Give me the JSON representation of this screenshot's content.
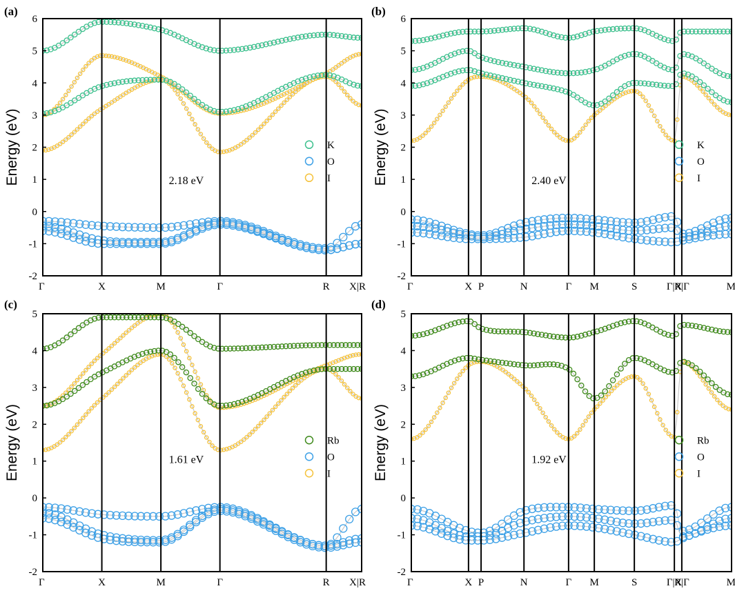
{
  "colors": {
    "K": "#3dc08e",
    "Rb": "#3f8a1c",
    "O": "#3da0e6",
    "I": "#f5c23b",
    "line": "#c8c8c8"
  },
  "chart_data": [
    {
      "panel": "(a)",
      "type": "line",
      "ylabel": "Energy (eV)",
      "ylim": [
        -2,
        6
      ],
      "yticks": [
        -2,
        -1,
        0,
        1,
        2,
        3,
        4,
        5,
        6
      ],
      "kpoints": [
        "Γ",
        "X",
        "M",
        "Γ",
        "R",
        "X|R"
      ],
      "kpos": [
        0,
        1,
        2,
        3,
        4.8,
        5.4
      ],
      "gap_label": "2.18 eV",
      "legend": [
        {
          "name": "K",
          "color": "#3dc08e"
        },
        {
          "name": "O",
          "color": "#3da0e6"
        },
        {
          "name": "I",
          "color": "#f5c23b"
        }
      ],
      "series": [
        {
          "name": "O",
          "x": [
            0,
            1,
            2,
            3,
            4.8,
            5.4
          ],
          "y": [
            -0.3,
            -0.45,
            -0.5,
            -0.3,
            -1.15,
            -0.4
          ]
        },
        {
          "name": "O",
          "x": [
            0,
            1,
            2,
            3,
            4.8,
            5.4
          ],
          "y": [
            -0.45,
            -0.9,
            -0.95,
            -0.35,
            -1.2,
            -1.0
          ]
        },
        {
          "name": "O",
          "x": [
            0,
            1,
            2,
            3,
            4.8,
            5.4
          ],
          "y": [
            -0.6,
            -1.0,
            -1.0,
            -0.4,
            -1.2,
            -1.0
          ]
        },
        {
          "name": "I",
          "x": [
            0,
            1,
            2,
            3,
            4.8,
            5.4
          ],
          "y": [
            1.9,
            3.2,
            4.1,
            1.85,
            4.2,
            3.3
          ]
        },
        {
          "name": "I",
          "x": [
            0,
            1,
            2,
            3,
            4.8,
            5.4
          ],
          "y": [
            3.0,
            4.85,
            4.2,
            3.05,
            4.3,
            4.9
          ]
        },
        {
          "name": "K",
          "x": [
            0,
            1,
            2,
            3,
            4.8,
            5.4
          ],
          "y": [
            3.05,
            3.9,
            4.1,
            3.1,
            4.25,
            3.9
          ]
        },
        {
          "name": "K",
          "x": [
            0,
            1,
            2,
            3,
            4.8,
            5.4
          ],
          "y": [
            5.0,
            5.9,
            5.65,
            5.0,
            5.5,
            5.4
          ]
        }
      ]
    },
    {
      "panel": "(b)",
      "type": "line",
      "ylabel": "Energy (eV)",
      "ylim": [
        -2,
        6
      ],
      "yticks": [
        -2,
        -1,
        0,
        1,
        2,
        3,
        4,
        5,
        6
      ],
      "kpoints": [
        "Γ",
        "X",
        "P",
        "N",
        "Γ",
        "M",
        "S",
        "Γ|X",
        "R|Γ",
        "M"
      ],
      "kpos": [
        0,
        1,
        1.22,
        1.97,
        2.75,
        3.2,
        3.9,
        4.6,
        4.73,
        5.6
      ],
      "gap_label": "2.40 eV",
      "legend": [
        {
          "name": "K",
          "color": "#3dc08e"
        },
        {
          "name": "O",
          "color": "#3da0e6"
        },
        {
          "name": "I",
          "color": "#f5c23b"
        }
      ],
      "series": [
        {
          "name": "O",
          "x": [
            0,
            1,
            1.22,
            1.97,
            2.75,
            3.2,
            3.9,
            4.6,
            4.73,
            5.6
          ],
          "y": [
            -0.25,
            -0.7,
            -0.75,
            -0.35,
            -0.2,
            -0.25,
            -0.35,
            -0.15,
            -0.7,
            -0.2
          ]
        },
        {
          "name": "O",
          "x": [
            0,
            1,
            1.22,
            1.97,
            2.75,
            3.2,
            3.9,
            4.6,
            4.73,
            5.6
          ],
          "y": [
            -0.45,
            -0.75,
            -0.8,
            -0.55,
            -0.4,
            -0.45,
            -0.6,
            -0.5,
            -0.8,
            -0.45
          ]
        },
        {
          "name": "O",
          "x": [
            0,
            1,
            1.22,
            1.97,
            2.75,
            3.2,
            3.9,
            4.6,
            4.73,
            5.6
          ],
          "y": [
            -0.65,
            -0.85,
            -0.85,
            -0.8,
            -0.6,
            -0.65,
            -0.85,
            -0.95,
            -0.9,
            -0.7
          ]
        },
        {
          "name": "I",
          "x": [
            0,
            1,
            1.22,
            1.97,
            2.75,
            3.2,
            3.9,
            4.6,
            4.73,
            5.6
          ],
          "y": [
            2.2,
            4.1,
            4.2,
            3.6,
            2.2,
            3.0,
            3.75,
            2.2,
            4.2,
            3.0
          ]
        },
        {
          "name": "K",
          "x": [
            0,
            1,
            1.22,
            1.97,
            2.75,
            3.2,
            3.9,
            4.6,
            4.73,
            5.6
          ],
          "y": [
            3.9,
            4.4,
            4.3,
            4.0,
            3.7,
            3.3,
            4.0,
            3.9,
            4.3,
            3.4
          ]
        },
        {
          "name": "K",
          "x": [
            0,
            1,
            1.22,
            1.97,
            2.75,
            3.2,
            3.9,
            4.6,
            4.73,
            5.6
          ],
          "y": [
            4.4,
            5.0,
            4.8,
            4.5,
            4.3,
            4.4,
            4.9,
            4.4,
            4.9,
            4.2
          ]
        },
        {
          "name": "K",
          "x": [
            0,
            1,
            1.22,
            1.97,
            2.75,
            3.2,
            3.9,
            4.6,
            4.73,
            5.6
          ],
          "y": [
            5.3,
            5.6,
            5.6,
            5.7,
            5.4,
            5.6,
            5.7,
            5.3,
            5.6,
            5.6
          ]
        }
      ]
    },
    {
      "panel": "(c)",
      "type": "line",
      "ylabel": "Energy (eV)",
      "ylim": [
        -2,
        5
      ],
      "yticks": [
        -2,
        -1,
        0,
        1,
        2,
        3,
        4,
        5
      ],
      "kpoints": [
        "Γ",
        "X",
        "M",
        "Γ",
        "R",
        "X|R"
      ],
      "kpos": [
        0,
        1,
        2,
        3,
        4.8,
        5.4
      ],
      "gap_label": "1.61 eV",
      "legend": [
        {
          "name": "Rb",
          "color": "#3f8a1c"
        },
        {
          "name": "O",
          "color": "#3da0e6"
        },
        {
          "name": "I",
          "color": "#f5c23b"
        }
      ],
      "series": [
        {
          "name": "O",
          "x": [
            0,
            1,
            2,
            3,
            4.8,
            5.4
          ],
          "y": [
            -0.25,
            -0.45,
            -0.5,
            -0.25,
            -1.3,
            -0.3
          ]
        },
        {
          "name": "O",
          "x": [
            0,
            1,
            2,
            3,
            4.8,
            5.4
          ],
          "y": [
            -0.4,
            -1.0,
            -1.15,
            -0.3,
            -1.3,
            -1.1
          ]
        },
        {
          "name": "O",
          "x": [
            0,
            1,
            2,
            3,
            4.8,
            5.4
          ],
          "y": [
            -0.55,
            -1.1,
            -1.2,
            -0.35,
            -1.35,
            -1.2
          ]
        },
        {
          "name": "I",
          "x": [
            0,
            1,
            2,
            3,
            4.8,
            5.4
          ],
          "y": [
            1.3,
            2.7,
            3.9,
            1.3,
            3.5,
            2.7
          ]
        },
        {
          "name": "I",
          "x": [
            0,
            1,
            2,
            3,
            4.8,
            5.4
          ],
          "y": [
            2.5,
            3.9,
            5.0,
            2.45,
            3.6,
            3.9
          ]
        },
        {
          "name": "Rb",
          "x": [
            0,
            1,
            2,
            3,
            4.8,
            5.4
          ],
          "y": [
            2.5,
            3.4,
            4.0,
            2.5,
            3.5,
            3.5
          ]
        },
        {
          "name": "Rb",
          "x": [
            0,
            1,
            2,
            3,
            4.8,
            5.4
          ],
          "y": [
            4.05,
            4.9,
            4.9,
            4.05,
            4.15,
            4.15
          ]
        }
      ]
    },
    {
      "panel": "(d)",
      "type": "line",
      "ylabel": "Energy (eV)",
      "ylim": [
        -2,
        5
      ],
      "yticks": [
        -2,
        -1,
        0,
        1,
        2,
        3,
        4,
        5
      ],
      "kpoints": [
        "Γ",
        "X",
        "P",
        "N",
        "Γ",
        "M",
        "S",
        "Γ|X",
        "R|Γ",
        "M"
      ],
      "kpos": [
        0,
        1,
        1.22,
        1.97,
        2.75,
        3.2,
        3.9,
        4.6,
        4.73,
        5.6
      ],
      "gap_label": "1.92 eV",
      "legend": [
        {
          "name": "Rb",
          "color": "#3f8a1c"
        },
        {
          "name": "O",
          "color": "#3da0e6"
        },
        {
          "name": "I",
          "color": "#f5c23b"
        }
      ],
      "series": [
        {
          "name": "O",
          "x": [
            0,
            1,
            1.22,
            1.97,
            2.75,
            3.2,
            3.9,
            4.6,
            4.73,
            5.6
          ],
          "y": [
            -0.3,
            -0.9,
            -0.95,
            -0.35,
            -0.25,
            -0.3,
            -0.35,
            -0.2,
            -0.9,
            -0.25
          ]
        },
        {
          "name": "O",
          "x": [
            0,
            1,
            1.22,
            1.97,
            2.75,
            3.2,
            3.9,
            4.6,
            4.73,
            5.6
          ],
          "y": [
            -0.55,
            -1.05,
            -1.05,
            -0.65,
            -0.5,
            -0.55,
            -0.7,
            -0.6,
            -1.05,
            -0.55
          ]
        },
        {
          "name": "O",
          "x": [
            0,
            1,
            1.22,
            1.97,
            2.75,
            3.2,
            3.9,
            4.6,
            4.73,
            5.6
          ],
          "y": [
            -0.75,
            -1.15,
            -1.15,
            -0.95,
            -0.75,
            -0.8,
            -1.0,
            -1.2,
            -1.1,
            -0.75
          ]
        },
        {
          "name": "I",
          "x": [
            0,
            1,
            1.22,
            1.97,
            2.75,
            3.2,
            3.9,
            4.6,
            4.73,
            5.6
          ],
          "y": [
            1.6,
            3.6,
            3.7,
            3.0,
            1.6,
            2.4,
            3.3,
            1.65,
            3.7,
            2.4
          ]
        },
        {
          "name": "Rb",
          "x": [
            0,
            1,
            1.22,
            1.97,
            2.75,
            3.2,
            3.9,
            4.6,
            4.73,
            5.6
          ],
          "y": [
            3.3,
            3.8,
            3.75,
            3.6,
            3.5,
            2.7,
            3.8,
            3.4,
            3.7,
            2.8
          ]
        },
        {
          "name": "Rb",
          "x": [
            0,
            1,
            1.22,
            1.97,
            2.75,
            3.2,
            3.9,
            4.6,
            4.73,
            5.6
          ],
          "y": [
            4.4,
            4.8,
            4.6,
            4.5,
            4.35,
            4.5,
            4.8,
            4.4,
            4.7,
            4.5
          ]
        }
      ]
    }
  ]
}
